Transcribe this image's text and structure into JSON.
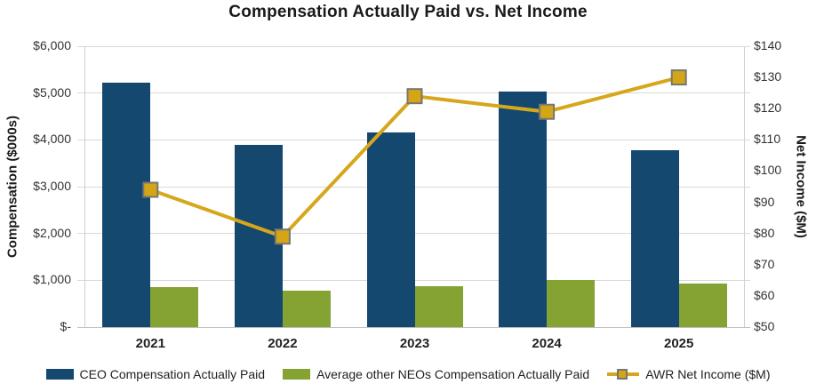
{
  "title": "Compensation Actually Paid vs. Net Income",
  "chart_data": {
    "type": "bar",
    "subtype": "grouped-bar-with-line-combo",
    "title": "Compensation Actually Paid vs. Net Income",
    "categories": [
      "2021",
      "2022",
      "2023",
      "2024",
      "2025"
    ],
    "series": [
      {
        "name": "CEO Compensation Actually Paid",
        "type": "bar",
        "axis": "left",
        "color": "#14486F",
        "values": [
          5220,
          3890,
          4160,
          5040,
          3770
        ]
      },
      {
        "name": "Average other NEOs Compensation Actually Paid",
        "type": "bar",
        "axis": "left",
        "color": "#84A333",
        "values": [
          850,
          780,
          870,
          1000,
          930
        ]
      },
      {
        "name": "AWR Net Income ($M)",
        "type": "line",
        "axis": "right",
        "color": "#D6A71C",
        "marker": "square",
        "marker_fill": "#D4A515",
        "marker_border": "#767676",
        "values": [
          94,
          79,
          124,
          119,
          130
        ]
      }
    ],
    "left_axis": {
      "label": "Compensation ($000s)",
      "min": 0,
      "max": 6000,
      "step": 1000,
      "ticks": [
        "$6,000",
        "$5,000",
        "$4,000",
        "$3,000",
        "$2,000",
        "$1,000",
        "$-"
      ]
    },
    "right_axis": {
      "label": "Net Income ($M)",
      "min": 50,
      "max": 140,
      "step": 10,
      "ticks": [
        "$140",
        "$130",
        "$120",
        "$110",
        "$100",
        "$90",
        "$80",
        "$70",
        "$60",
        "$50"
      ]
    },
    "grid": true,
    "gridline_color": "#D9D9D9",
    "legend_position": "bottom"
  }
}
